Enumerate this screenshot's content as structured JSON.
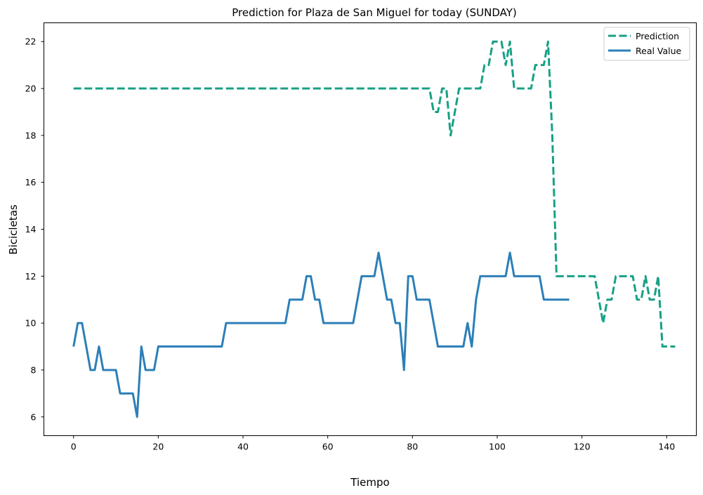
{
  "chart_data": {
    "type": "line",
    "title": "Prediction for Plaza de San Miguel for today (SUNDAY)",
    "xlabel": "Tiempo",
    "ylabel": "Bicicletas",
    "xlim": [
      -7,
      147
    ],
    "ylim": [
      5.2,
      22.8
    ],
    "xticks": [
      0,
      20,
      40,
      60,
      80,
      100,
      120,
      140
    ],
    "yticks": [
      6,
      8,
      10,
      12,
      14,
      16,
      18,
      20,
      22
    ],
    "grid": false,
    "legend_position": "top-right",
    "series": [
      {
        "name": "Prediction",
        "color": "#17a085",
        "style": "dashed",
        "x": [
          0,
          84,
          85,
          86,
          87,
          88,
          89,
          90,
          91,
          92,
          93,
          94,
          95,
          96,
          97,
          98,
          99,
          100,
          101,
          102,
          103,
          104,
          105,
          106,
          107,
          108,
          109,
          110,
          111,
          112,
          113,
          114,
          115,
          116,
          117,
          118,
          119,
          120,
          121,
          122,
          123,
          124,
          125,
          126,
          127,
          128,
          129,
          130,
          131,
          132,
          133,
          134,
          135,
          136,
          137,
          138,
          139,
          140,
          141,
          142
        ],
        "y": [
          20,
          20,
          19,
          19,
          20,
          20,
          18,
          19,
          20,
          20,
          20,
          20,
          20,
          20,
          21,
          21,
          22,
          22,
          22,
          21,
          22,
          20,
          20,
          20,
          20,
          20,
          21,
          21,
          21,
          22,
          18,
          12,
          12,
          12,
          12,
          12,
          12,
          12,
          12,
          12,
          12,
          11,
          10,
          11,
          11,
          12,
          12,
          12,
          12,
          12,
          11,
          11,
          12,
          11,
          11,
          12,
          9,
          9,
          9,
          9
        ]
      },
      {
        "name": "Real Value",
        "color": "#2c7fb8",
        "style": "solid",
        "x": [
          0,
          1,
          2,
          3,
          4,
          5,
          6,
          7,
          8,
          9,
          10,
          11,
          12,
          13,
          14,
          15,
          16,
          17,
          18,
          19,
          20,
          21,
          22,
          23,
          24,
          25,
          26,
          27,
          28,
          29,
          30,
          31,
          32,
          33,
          34,
          35,
          36,
          37,
          38,
          39,
          40,
          41,
          42,
          43,
          44,
          45,
          46,
          47,
          48,
          49,
          50,
          51,
          52,
          53,
          54,
          55,
          56,
          57,
          58,
          59,
          60,
          61,
          62,
          63,
          64,
          65,
          66,
          67,
          68,
          69,
          70,
          71,
          72,
          73,
          74,
          75,
          76,
          77,
          78,
          79,
          80,
          81,
          82,
          83,
          84,
          85,
          86,
          87,
          88,
          89,
          90,
          91,
          92,
          93,
          94,
          95,
          96,
          97,
          98,
          99,
          100,
          101,
          102,
          103,
          104,
          105,
          106,
          107,
          108,
          109,
          110,
          111,
          112,
          113,
          114,
          115,
          116,
          117
        ],
        "y": [
          9,
          10,
          10,
          9,
          8,
          8,
          9,
          8,
          8,
          8,
          8,
          7,
          7,
          7,
          7,
          6,
          9,
          8,
          8,
          8,
          9,
          9,
          9,
          9,
          9,
          9,
          9,
          9,
          9,
          9,
          9,
          9,
          9,
          9,
          9,
          9,
          10,
          10,
          10,
          10,
          10,
          10,
          10,
          10,
          10,
          10,
          10,
          10,
          10,
          10,
          10,
          11,
          11,
          11,
          11,
          12,
          12,
          11,
          11,
          10,
          10,
          10,
          10,
          10,
          10,
          10,
          10,
          11,
          12,
          12,
          12,
          12,
          13,
          12,
          11,
          11,
          10,
          10,
          8,
          12,
          12,
          11,
          11,
          11,
          11,
          10,
          9,
          9,
          9,
          9,
          9,
          9,
          9,
          10,
          9,
          11,
          12,
          12,
          12,
          12,
          12,
          12,
          12,
          13,
          12,
          12,
          12,
          12,
          12,
          12,
          12,
          11,
          11,
          11,
          11,
          11,
          11,
          11
        ]
      }
    ]
  }
}
